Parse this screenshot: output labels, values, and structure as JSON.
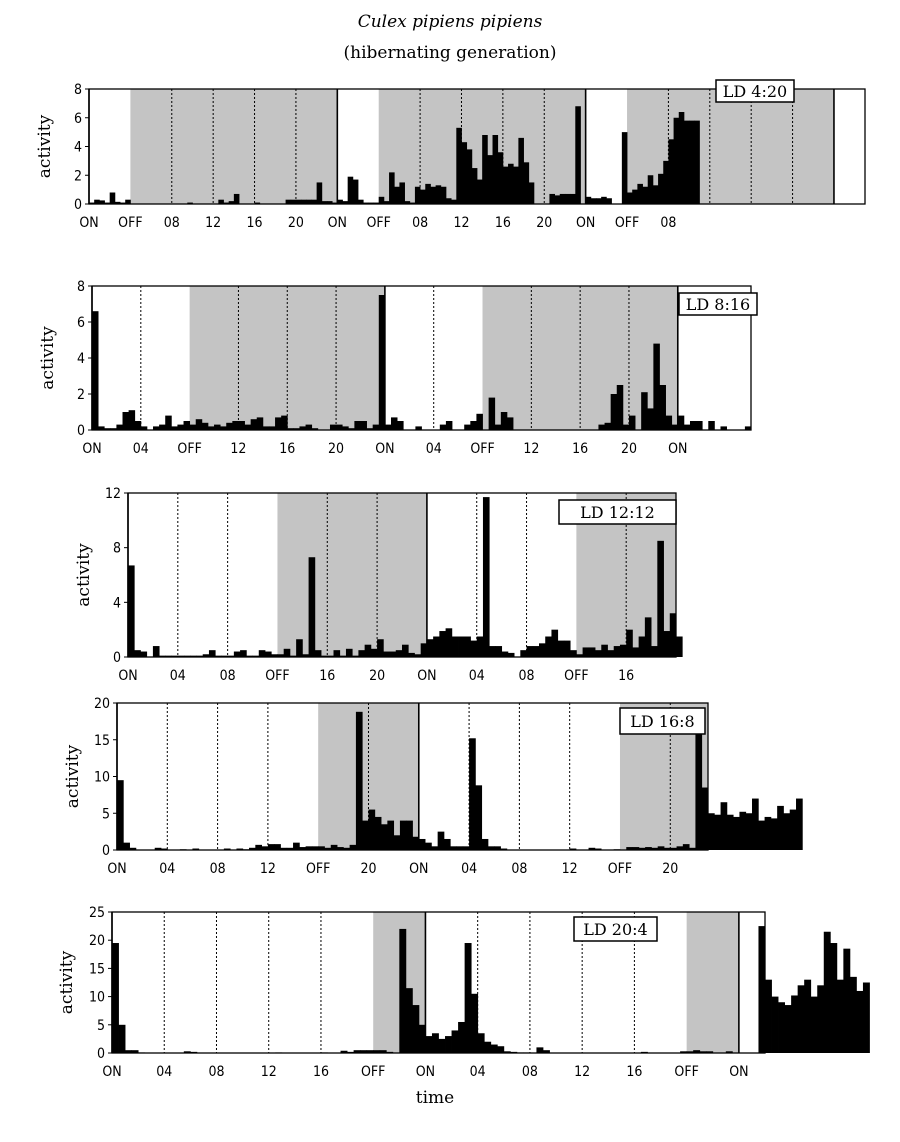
{
  "title": "Culex pipiens pipiens",
  "subtitle": "(hibernating generation)",
  "xlabel": "time",
  "chart_data": [
    {
      "type": "bar",
      "label": "LD 4:20",
      "ylabel": "activity",
      "ylim": [
        0,
        8
      ],
      "yticks": [
        0,
        2,
        4,
        6,
        8
      ],
      "x_range_h": [
        0,
        75
      ],
      "dark_periods_h": [
        [
          4,
          24
        ],
        [
          28,
          48
        ],
        [
          52,
          72
        ]
      ],
      "dotted_lines_h": [
        8,
        12,
        16,
        20,
        32,
        36,
        40,
        44,
        56,
        60,
        64,
        68
      ],
      "x_tick_positions_h": [
        0,
        4,
        8,
        12,
        16,
        20,
        24,
        28,
        32,
        36,
        40,
        44,
        48,
        52,
        56
      ],
      "x_tick_labels": [
        "ON",
        "OFF",
        "08",
        "12",
        "16",
        "20",
        "ON",
        "OFF",
        "08",
        "12",
        "16",
        "20",
        "ON",
        "OFF",
        "08"
      ],
      "values": [
        0.1,
        0.3,
        0.25,
        0.1,
        0.8,
        0.15,
        0.1,
        0.3,
        0,
        0,
        0,
        0,
        0,
        0,
        0,
        0,
        0,
        0,
        0,
        0.1,
        0,
        0,
        0,
        0,
        0,
        0.3,
        0.1,
        0.2,
        0.7,
        0,
        0,
        0,
        0.1,
        0,
        0,
        0,
        0,
        0,
        0.3,
        0.3,
        0.3,
        0.3,
        0.3,
        0.3,
        1.5,
        0.2,
        0.2,
        0.1,
        0.3,
        0.2,
        1.9,
        1.7,
        0.3,
        0.1,
        0.1,
        0.1,
        0.5,
        0.2,
        2.2,
        1.2,
        1.5,
        0.2,
        0.1,
        1.2,
        1,
        1.4,
        1.2,
        1.3,
        1.2,
        0.4,
        0.3,
        5.3,
        4.3,
        3.8,
        2.5,
        1.7,
        4.8,
        3.4,
        4.8,
        3.6,
        2.6,
        2.8,
        2.6,
        4.6,
        2.9,
        1.5,
        0,
        0,
        0,
        0.7,
        0.6,
        0.7,
        0.7,
        0.7,
        6.8,
        0,
        0.5,
        0.4,
        0.4,
        0.5,
        0.4,
        0,
        0,
        5,
        0.8,
        1,
        1.4,
        1.2,
        2,
        1.3,
        2.1,
        3,
        4.5,
        6,
        6.4,
        5.8,
        5.8,
        5.8
      ]
    },
    {
      "type": "bar",
      "label": "LD 8:16",
      "ylabel": "activity",
      "ylim": [
        0,
        8
      ],
      "yticks": [
        0,
        2,
        4,
        6,
        8
      ],
      "x_range_h": [
        0,
        54
      ],
      "dark_periods_h": [
        [
          8,
          24
        ],
        [
          32,
          48
        ]
      ],
      "dotted_lines_h": [
        4,
        12,
        16,
        20,
        28,
        36,
        40,
        44
      ],
      "x_tick_positions_h": [
        0,
        4,
        8,
        12,
        16,
        20,
        24,
        28,
        32,
        36,
        40,
        44,
        48
      ],
      "x_tick_labels": [
        "ON",
        "04",
        "OFF",
        "12",
        "16",
        "20",
        "ON",
        "04",
        "OFF",
        "12",
        "16",
        "20",
        "ON"
      ],
      "values": [
        6.6,
        0.2,
        0.1,
        0.1,
        0.3,
        1,
        1.1,
        0.5,
        0.2,
        0,
        0.2,
        0.3,
        0.8,
        0.2,
        0.3,
        0.5,
        0.3,
        0.6,
        0.4,
        0.2,
        0.3,
        0.2,
        0.4,
        0.5,
        0.5,
        0.3,
        0.6,
        0.7,
        0.2,
        0.2,
        0.7,
        0.8,
        0.1,
        0.1,
        0.2,
        0.3,
        0.1,
        0,
        0,
        0.3,
        0.3,
        0.2,
        0.1,
        0.5,
        0.5,
        0.1,
        0.3,
        7.5,
        0.3,
        0.7,
        0.5,
        0,
        0,
        0.2,
        0,
        0,
        0,
        0.3,
        0.5,
        0,
        0,
        0.3,
        0.5,
        0.9,
        0,
        1.8,
        0.3,
        1,
        0.7,
        0,
        0,
        0,
        0,
        0,
        0,
        0,
        0,
        0,
        0,
        0,
        0,
        0,
        0,
        0.3,
        0.4,
        2,
        2.5,
        0.3,
        0.8,
        0,
        2.1,
        1.2,
        4.8,
        2.5,
        0.8,
        0.3,
        0.8,
        0.3,
        0.5,
        0.5,
        0,
        0.5,
        0,
        0.2,
        0,
        0,
        0,
        0.2,
        0
      ]
    },
    {
      "type": "bar",
      "label": "LD 12:12",
      "ylabel": "activity",
      "ylim": [
        0,
        12
      ],
      "yticks": [
        0,
        4,
        8,
        12
      ],
      "x_range_h": [
        0,
        44
      ],
      "dark_periods_h": [
        [
          12,
          24
        ],
        [
          36,
          44
        ]
      ],
      "dotted_lines_h": [
        4,
        8,
        16,
        20,
        28,
        32,
        40
      ],
      "x_tick_positions_h": [
        0,
        4,
        8,
        12,
        16,
        20,
        24,
        28,
        32,
        36,
        40
      ],
      "x_tick_labels": [
        "ON",
        "04",
        "08",
        "OFF",
        "16",
        "20",
        "ON",
        "04",
        "08",
        "OFF",
        "16"
      ],
      "values": [
        6.7,
        0.5,
        0.4,
        0,
        0.8,
        0.1,
        0.1,
        0.1,
        0.1,
        0.1,
        0.1,
        0.1,
        0.2,
        0.5,
        0.1,
        0.1,
        0.1,
        0.4,
        0.5,
        0.1,
        0.1,
        0.5,
        0.4,
        0.2,
        0.2,
        0.6,
        0.1,
        1.3,
        0.2,
        7.3,
        0.5,
        0.1,
        0.1,
        0.5,
        0.1,
        0.6,
        0.1,
        0.5,
        0.9,
        0.6,
        1.3,
        0.4,
        0.4,
        0.5,
        0.9,
        0.3,
        0.2,
        1,
        1.3,
        1.5,
        1.9,
        2.1,
        1.5,
        1.5,
        1.5,
        1.2,
        1.5,
        11.7,
        0.8,
        0.8,
        0.4,
        0.3,
        0,
        0.5,
        0.8,
        0.8,
        1,
        1.5,
        2,
        1.2,
        1.2,
        0.5,
        0.2,
        0.7,
        0.7,
        0.5,
        0.9,
        0.5,
        0.8,
        0.9,
        2,
        0.7,
        1.5,
        2.9,
        0.8,
        8.5,
        1.9,
        3.2,
        1.5,
        0,
        0,
        0,
        0,
        0,
        0,
        0,
        0,
        0,
        0,
        0,
        0,
        0,
        0,
        0,
        0,
        0
      ]
    },
    {
      "type": "bar",
      "label": "LD 16:8",
      "ylabel": "activity",
      "ylim": [
        0,
        20
      ],
      "yticks": [
        0,
        5,
        10,
        15,
        20
      ],
      "x_range_h": [
        0,
        47
      ],
      "dark_periods_h": [
        [
          16,
          24
        ],
        [
          40,
          47
        ]
      ],
      "dotted_lines_h": [
        4,
        8,
        12,
        20,
        28,
        32,
        36,
        44
      ],
      "x_tick_positions_h": [
        0,
        4,
        8,
        12,
        16,
        20,
        24,
        28,
        32,
        36,
        40,
        44
      ],
      "x_tick_labels": [
        "ON",
        "04",
        "08",
        "12",
        "OFF",
        "20",
        "ON",
        "04",
        "08",
        "12",
        "OFF",
        "20"
      ],
      "values": [
        9.5,
        1,
        0.3,
        0,
        0,
        0,
        0.3,
        0.2,
        0,
        0,
        0.1,
        0,
        0.2,
        0,
        0,
        0,
        0,
        0.2,
        0,
        0.2,
        0.1,
        0.3,
        0.7,
        0.5,
        0.8,
        0.8,
        0.3,
        0.3,
        1,
        0.4,
        0.5,
        0.5,
        0.5,
        0.3,
        0.7,
        0.4,
        0.3,
        0.7,
        18.8,
        4,
        5.5,
        4.5,
        3.5,
        4,
        2,
        4,
        4,
        1.8,
        1.5,
        1,
        0.5,
        2.5,
        1.5,
        0.5,
        0.5,
        0.5,
        15.2,
        8.8,
        1.5,
        0.5,
        0.5,
        0.2,
        0,
        0,
        0,
        0,
        0,
        0,
        0,
        0,
        0,
        0,
        0.2,
        0,
        0,
        0.3,
        0.2,
        0,
        0,
        0.1,
        0,
        0.4,
        0.4,
        0.3,
        0.4,
        0.3,
        0.5,
        0.3,
        0.3,
        0.5,
        0.8,
        0.3,
        17.8,
        8.5,
        5,
        4.8,
        6.5,
        4.8,
        4.5,
        5.2,
        5,
        7,
        4,
        4.5,
        4.3,
        6,
        5,
        5.5,
        7
      ]
    },
    {
      "type": "bar",
      "label": "LD 20:4",
      "ylabel": "activity",
      "ylim": [
        0,
        25
      ],
      "yticks": [
        0,
        5,
        10,
        15,
        20,
        25
      ],
      "x_range_h": [
        0,
        50
      ],
      "dark_periods_h": [
        [
          20,
          24
        ],
        [
          44,
          48
        ]
      ],
      "dotted_lines_h": [
        4,
        8,
        12,
        16,
        28,
        32,
        36,
        40
      ],
      "x_tick_positions_h": [
        0,
        4,
        8,
        12,
        16,
        20,
        24,
        28,
        32,
        36,
        40,
        44,
        48
      ],
      "x_tick_labels": [
        "ON",
        "04",
        "08",
        "12",
        "16",
        "OFF",
        "ON",
        "04",
        "08",
        "12",
        "16",
        "OFF",
        "ON"
      ],
      "values": [
        19.5,
        5,
        0.5,
        0.5,
        0.1,
        0,
        0,
        0,
        0,
        0,
        0,
        0.3,
        0.2,
        0,
        0,
        0,
        0,
        0,
        0,
        0,
        0,
        0,
        0,
        0,
        0,
        0.1,
        0,
        0,
        0,
        0,
        0,
        0,
        0.1,
        0,
        0,
        0.4,
        0.2,
        0.5,
        0.5,
        0.5,
        0.5,
        0.5,
        0.2,
        0,
        22,
        11.5,
        8.5,
        5,
        3,
        3.5,
        2.5,
        3,
        4,
        5.5,
        19.5,
        10.5,
        3.5,
        2,
        1.5,
        1.2,
        0.3,
        0.2,
        0.1,
        0.1,
        0,
        1,
        0.5,
        0,
        0,
        0,
        0,
        0,
        0,
        0,
        0,
        0,
        0,
        0,
        0,
        0,
        0,
        0.2,
        0,
        0,
        0,
        0,
        0,
        0.3,
        0.3,
        0.5,
        0.3,
        0.3,
        0,
        0,
        0.3,
        0,
        0,
        0,
        0,
        22.5,
        13,
        10,
        9,
        8.5,
        10.2,
        12,
        13,
        10,
        12,
        21.5,
        19.5,
        13,
        18.5,
        13.5,
        11,
        12.5
      ]
    }
  ]
}
